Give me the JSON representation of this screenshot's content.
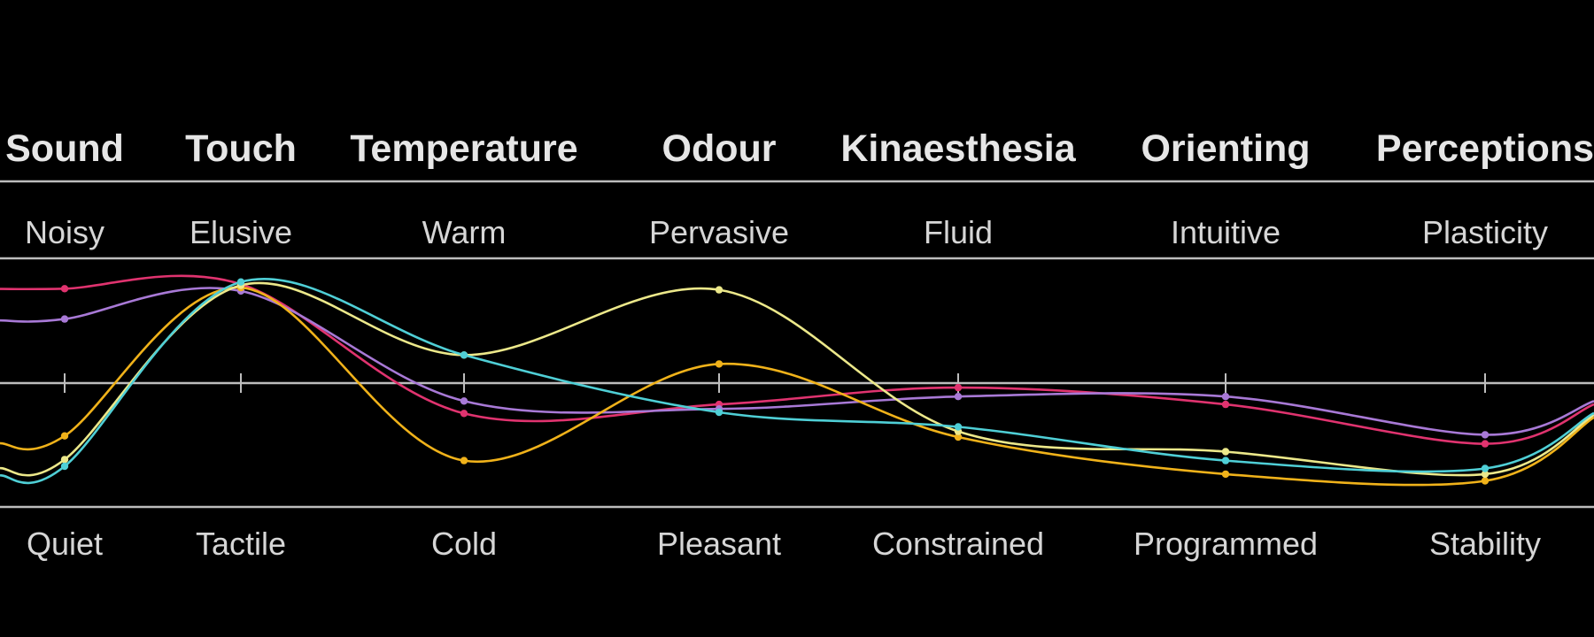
{
  "chart_data": {
    "type": "line",
    "title": "",
    "categories": [
      "Sound",
      "Touch",
      "Temperature",
      "Odour",
      "Kinaesthesia",
      "Orienting",
      "Perceptions"
    ],
    "top_labels": [
      "Noisy",
      "Elusive",
      "Warm",
      "Pervasive",
      "Fluid",
      "Intuitive",
      "Plasticity"
    ],
    "bottom_labels": [
      "Quiet",
      "Tactile",
      "Cold",
      "Pleasant",
      "Constrained",
      "Programmed",
      "Stability"
    ],
    "ylim": [
      -1,
      1
    ],
    "grid": false,
    "series": [
      {
        "color": "#e0336f",
        "values": [
          0.84,
          0.88,
          -0.27,
          -0.19,
          -0.04,
          -0.19,
          -0.54
        ]
      },
      {
        "color": "#a879d6",
        "values": [
          0.57,
          0.82,
          -0.16,
          -0.23,
          -0.12,
          -0.12,
          -0.46
        ]
      },
      {
        "color": "#f0b21a",
        "values": [
          -0.47,
          0.85,
          -0.69,
          0.17,
          -0.48,
          -0.81,
          -0.87
        ]
      },
      {
        "color": "#ece88a",
        "values": [
          -0.68,
          0.87,
          0.25,
          0.83,
          -0.43,
          -0.61,
          -0.81
        ]
      },
      {
        "color": "#4fcfd6",
        "values": [
          -0.74,
          0.9,
          0.25,
          -0.26,
          -0.39,
          -0.69,
          -0.76
        ]
      }
    ]
  }
}
